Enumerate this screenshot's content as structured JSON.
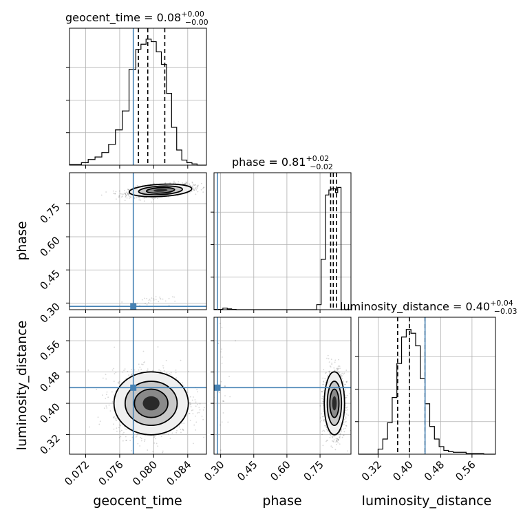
{
  "chart_data": {
    "type": "corner",
    "parameters": [
      {
        "name": "geocent_time",
        "label": "geocent_time",
        "range": [
          0.0701,
          0.0862
        ],
        "ticks": [
          0.072,
          0.076,
          0.08,
          0.084
        ],
        "tick_labels": [
          "0.072",
          "0.076",
          "0.080",
          "0.084"
        ],
        "truth": 0.0776,
        "median": 0.08,
        "q_lower": 0.0782,
        "q_median": 0.0793,
        "q_upper": 0.0813
      },
      {
        "name": "phase",
        "label": "phase",
        "range": [
          0.27,
          0.89
        ],
        "ticks": [
          0.3,
          0.45,
          0.6,
          0.75
        ],
        "tick_labels": [
          "0.30",
          "0.45",
          "0.60",
          "0.75"
        ],
        "truth": 0.285,
        "median": 0.81,
        "q_lower": 0.798,
        "q_median": 0.81,
        "q_upper": 0.824
      },
      {
        "name": "luminosity_distance",
        "label": "luminosity_distance",
        "range": [
          0.27,
          0.62
        ],
        "ticks": [
          0.32,
          0.4,
          0.48,
          0.56
        ],
        "tick_labels": [
          "0.32",
          "0.40",
          "0.48",
          "0.56"
        ],
        "truth": 0.44,
        "median": 0.4,
        "q_lower": 0.37,
        "q_median": 0.4,
        "q_upper": 0.44
      }
    ],
    "titles": [
      {
        "param": "geocent_time",
        "text": "geocent_time = 0.08",
        "sup": "+0.00",
        "sub": "−0.00"
      },
      {
        "param": "phase",
        "text": "phase = 0.81",
        "sup": "+0.02",
        "sub": "−0.02"
      },
      {
        "param": "luminosity_distance",
        "text": "luminosity_distance = 0.40",
        "sup": "+0.04",
        "sub": "−0.03"
      }
    ],
    "histograms": {
      "geocent_time": {
        "bin_edges": [
          0.0701,
          0.0715,
          0.0723,
          0.0731,
          0.0739,
          0.0747,
          0.0755,
          0.0763,
          0.0771,
          0.0779,
          0.0785,
          0.0791,
          0.0797,
          0.0803,
          0.0809,
          0.0815,
          0.0821,
          0.0827,
          0.0833,
          0.0839,
          0.0845,
          0.0851,
          0.0862
        ],
        "counts": [
          0.005,
          0.02,
          0.045,
          0.065,
          0.1,
          0.165,
          0.28,
          0.43,
          0.76,
          0.92,
          0.96,
          1.0,
          0.98,
          0.9,
          0.8,
          0.57,
          0.3,
          0.12,
          0.04,
          0.02,
          0.01,
          0.0
        ]
      },
      "phase": {
        "bin_edges": [
          0.27,
          0.31,
          0.33,
          0.35,
          0.37,
          0.735,
          0.755,
          0.775,
          0.79,
          0.8,
          0.81,
          0.82,
          0.83,
          0.845,
          0.89
        ],
        "counts": [
          0.002,
          0.012,
          0.006,
          0.002,
          0.0,
          0.04,
          0.4,
          0.91,
          0.95,
          0.96,
          0.96,
          0.93,
          0.97,
          0.0
        ]
      },
      "luminosity_distance": {
        "bin_edges": [
          0.27,
          0.32,
          0.332,
          0.344,
          0.356,
          0.368,
          0.38,
          0.392,
          0.404,
          0.416,
          0.428,
          0.44,
          0.452,
          0.464,
          0.476,
          0.488,
          0.5,
          0.512,
          0.545,
          0.59,
          0.62
        ],
        "counts": [
          0.0,
          0.04,
          0.12,
          0.25,
          0.45,
          0.72,
          0.93,
          0.99,
          0.96,
          0.86,
          0.6,
          0.4,
          0.22,
          0.12,
          0.06,
          0.03,
          0.02,
          0.015,
          0.005,
          0.0
        ]
      }
    },
    "scatter_clusters": [
      {
        "x": "geocent_time",
        "y": "phase",
        "cx": 0.0808,
        "cy": 0.81,
        "sx": 0.0016,
        "sy": 0.012,
        "rho": 0.45,
        "weight": 0.98
      },
      {
        "x": "geocent_time",
        "y": "phase",
        "cx": 0.0795,
        "cy": 0.31,
        "sx": 0.0012,
        "sy": 0.01,
        "rho": 0.2,
        "weight": 0.02
      },
      {
        "x": "geocent_time",
        "y": "luminosity_distance",
        "cx": 0.0797,
        "cy": 0.4,
        "sx": 0.0019,
        "sy": 0.035,
        "rho": 0.0,
        "weight": 1.0
      },
      {
        "x": "phase",
        "y": "luminosity_distance",
        "cx": 0.815,
        "cy": 0.4,
        "sx": 0.02,
        "sy": 0.035,
        "rho": 0.0,
        "weight": 0.98
      },
      {
        "x": "phase",
        "y": "luminosity_distance",
        "cx": 0.31,
        "cy": 0.44,
        "sx": 0.02,
        "sy": 0.06,
        "rho": 0.0,
        "weight": 0.02
      }
    ],
    "grid": true,
    "colors": {
      "truth": "#4682b4",
      "line": "#000000",
      "grid": "#b0b0b0"
    }
  }
}
